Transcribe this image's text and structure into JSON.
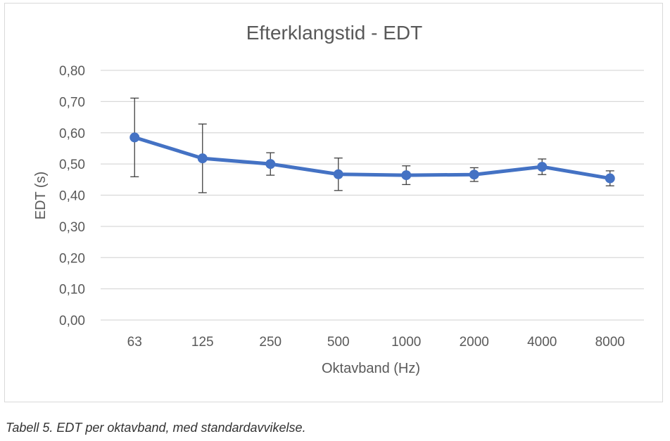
{
  "chart_data": {
    "type": "line",
    "title": "Efterklangstid - EDT",
    "xlabel": "Oktavband (Hz)",
    "ylabel": "EDT (s)",
    "categories": [
      "63",
      "125",
      "250",
      "500",
      "1000",
      "2000",
      "4000",
      "8000"
    ],
    "series": [
      {
        "values": [
          0.585,
          0.518,
          0.5,
          0.467,
          0.464,
          0.466,
          0.491,
          0.454
        ],
        "error": [
          0.126,
          0.11,
          0.036,
          0.052,
          0.03,
          0.022,
          0.025,
          0.024
        ],
        "color": "#4472c4"
      }
    ],
    "ylim": [
      0,
      0.8
    ],
    "yticks": [
      0.0,
      0.1,
      0.2,
      0.3,
      0.4,
      0.5,
      0.6,
      0.7,
      0.8
    ],
    "ytick_labels": [
      "0,00",
      "0,10",
      "0,20",
      "0,30",
      "0,40",
      "0,50",
      "0,60",
      "0,70",
      "0,80"
    ],
    "grid": true,
    "legend": "none"
  },
  "caption": "Tabell 5. EDT per oktavband, med standardavvikelse."
}
